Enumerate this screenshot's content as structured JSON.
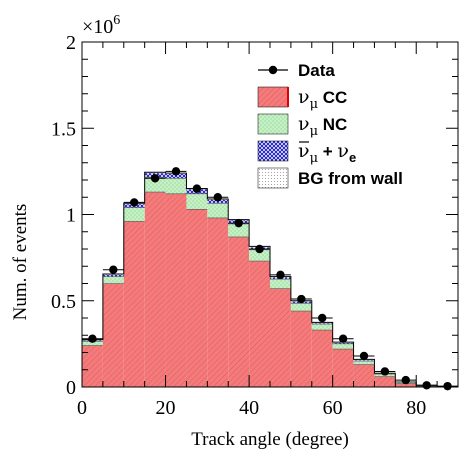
{
  "chart_data": {
    "type": "bar",
    "xlabel": "Track angle (degree)",
    "ylabel": "Num. of events",
    "y_multiplier": "×10",
    "y_multiplier_exp": "6",
    "xlim": [
      0,
      90
    ],
    "ylim": [
      0,
      2.0
    ],
    "x_ticks": [
      "0",
      "20",
      "40",
      "60",
      "80"
    ],
    "y_ticks": [
      "0",
      "0.5",
      "1",
      "1.5",
      "2"
    ],
    "bin_edges": [
      0,
      5,
      10,
      15,
      20,
      25,
      30,
      35,
      40,
      45,
      50,
      55,
      60,
      65,
      70,
      75,
      80,
      85,
      90
    ],
    "legend_position": "top-right",
    "series": [
      {
        "name_parts": [
          "ν",
          "μ",
          "CC"
        ],
        "color": "#f47b7b",
        "values": [
          0.24,
          0.6,
          0.96,
          1.13,
          1.12,
          1.03,
          0.98,
          0.87,
          0.73,
          0.57,
          0.44,
          0.33,
          0.22,
          0.13,
          0.06,
          0.02,
          0.005,
          0.0
        ]
      },
      {
        "name_parts": [
          "ν",
          "μ",
          "NC"
        ],
        "color": "#b8ebb8",
        "values": [
          0.025,
          0.04,
          0.08,
          0.085,
          0.09,
          0.09,
          0.085,
          0.075,
          0.065,
          0.055,
          0.045,
          0.035,
          0.03,
          0.02,
          0.015,
          0.01,
          0.005,
          0.0
        ]
      },
      {
        "name_parts": [
          "ν",
          "μ",
          "+",
          "ν",
          "e"
        ],
        "color": "#2222cc",
        "values": [
          0.005,
          0.01,
          0.02,
          0.025,
          0.025,
          0.025,
          0.02,
          0.02,
          0.015,
          0.01,
          0.01,
          0.005,
          0.005,
          0.005,
          0.0,
          0.0,
          0.0,
          0.0
        ]
      },
      {
        "name_parts": [
          "BG from wall"
        ],
        "color": "#d9d9d9",
        "values": [
          0.005,
          0.005,
          0.005,
          0.005,
          0.005,
          0.005,
          0.005,
          0.005,
          0.005,
          0.005,
          0.005,
          0.005,
          0.005,
          0.005,
          0.005,
          0.0,
          0.0,
          0.0
        ]
      }
    ],
    "data": {
      "name": "Data",
      "x": [
        2.5,
        7.5,
        12.5,
        17.5,
        22.5,
        27.5,
        32.5,
        37.5,
        42.5,
        47.5,
        52.5,
        57.5,
        62.5,
        67.5,
        72.5,
        77.5,
        82.5,
        87.5
      ],
      "y": [
        0.28,
        0.68,
        1.07,
        1.21,
        1.25,
        1.15,
        1.1,
        0.95,
        0.8,
        0.65,
        0.51,
        0.4,
        0.28,
        0.18,
        0.09,
        0.04,
        0.01,
        0.005
      ]
    }
  }
}
